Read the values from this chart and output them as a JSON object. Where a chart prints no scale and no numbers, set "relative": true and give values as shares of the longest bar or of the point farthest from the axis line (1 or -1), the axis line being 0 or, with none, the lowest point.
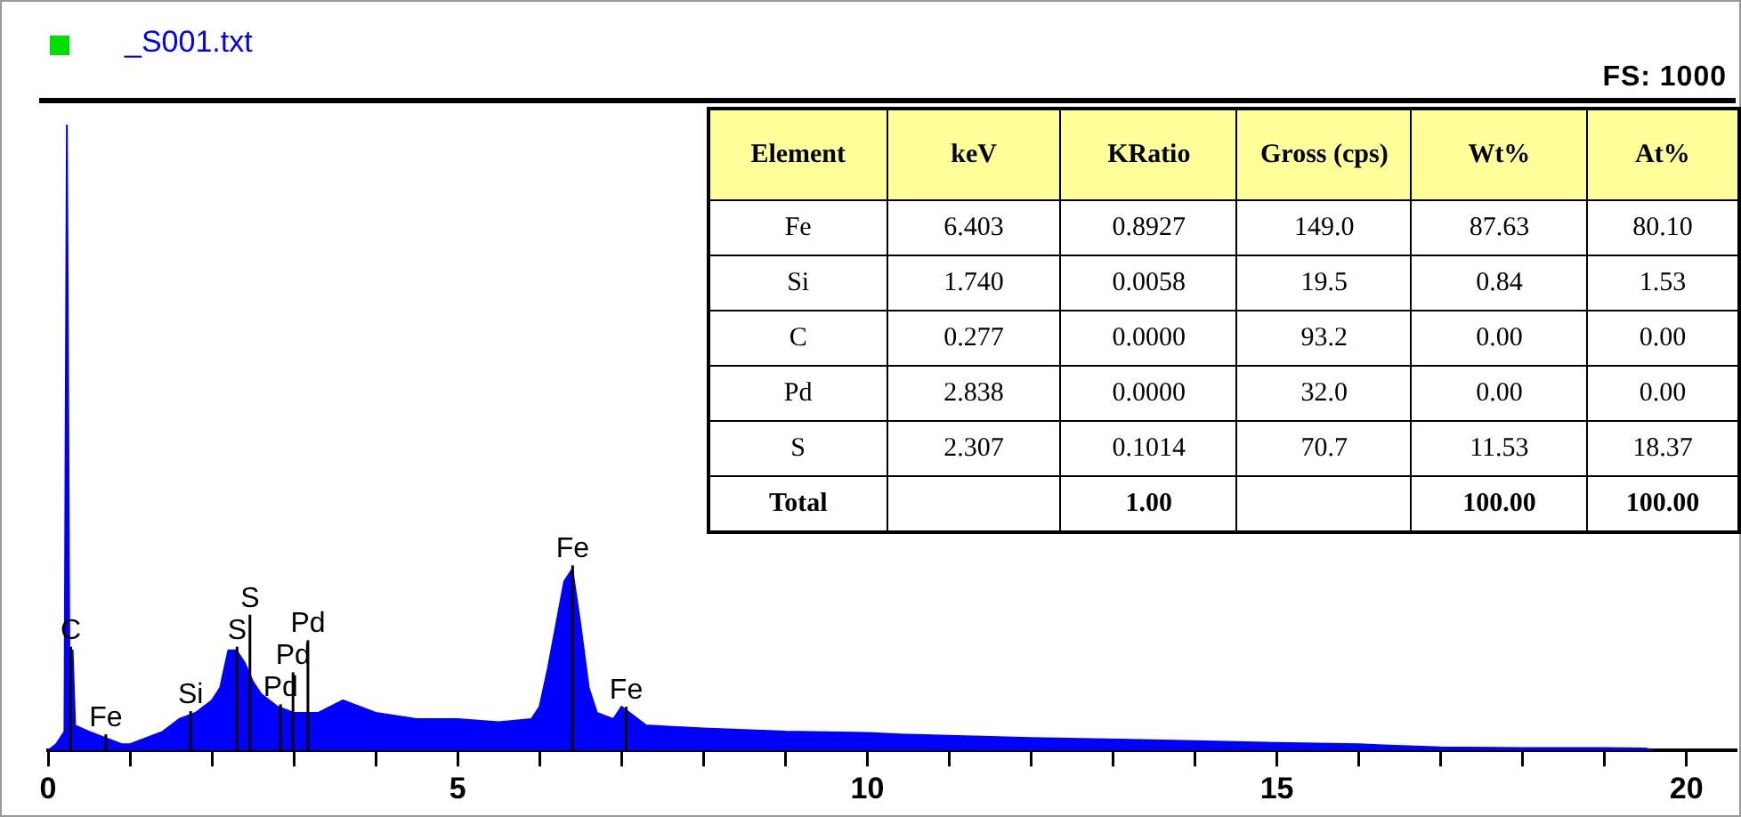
{
  "chart_data": {
    "type": "area",
    "title": "_S001.txt",
    "relative": true,
    "legend": false,
    "grid": false,
    "marker": "none",
    "xlim": [
      0,
      20.6
    ],
    "xticks": [
      0,
      {
        "value": 1,
        "label": null
      },
      {
        "value": 2,
        "label": null
      },
      {
        "value": 3,
        "label": null
      },
      {
        "value": 4,
        "label": null
      },
      5,
      {
        "value": 6,
        "label": null
      },
      {
        "value": 7,
        "label": null
      },
      {
        "value": 8,
        "label": null
      },
      {
        "value": 9,
        "label": null
      },
      10,
      {
        "value": 11,
        "label": null
      },
      {
        "value": 12,
        "label": null
      },
      {
        "value": 13,
        "label": null
      },
      {
        "value": 14,
        "label": null
      },
      15,
      {
        "value": 16,
        "label": null
      },
      {
        "value": 17,
        "label": null
      },
      {
        "value": 18,
        "label": null
      },
      {
        "value": 19,
        "label": null
      },
      20
    ],
    "x": [
      0,
      0.1,
      0.2,
      0.23,
      0.26,
      0.3,
      0.33,
      0.5,
      0.7,
      0.9,
      1.0,
      1.2,
      1.4,
      1.6,
      1.8,
      2.0,
      2.1,
      2.2,
      2.3,
      2.4,
      2.5,
      2.6,
      2.8,
      3.0,
      3.3,
      3.6,
      3.8,
      4.0,
      4.5,
      5.0,
      5.5,
      5.9,
      6.0,
      6.1,
      6.2,
      6.3,
      6.4,
      6.5,
      6.6,
      6.7,
      6.9,
      7.0,
      7.1,
      7.3,
      8,
      9,
      10,
      10.5,
      12,
      14,
      15,
      16,
      16.3,
      17,
      18,
      19,
      19.5,
      19.6
    ],
    "series": [
      {
        "color": "#0000ff",
        "values": [
          0,
          0.01,
          0.03,
          1,
          0.16,
          0.16,
          0.04,
          0.03,
          0.02,
          0.01,
          0.01,
          0.02,
          0.03,
          0.05,
          0.06,
          0.08,
          0.1,
          0.16,
          0.16,
          0.14,
          0.11,
          0.09,
          0.07,
          0.06,
          0.06,
          0.08,
          0.07,
          0.06,
          0.05,
          0.05,
          0.045,
          0.05,
          0.07,
          0.13,
          0.2,
          0.27,
          0.29,
          0.2,
          0.1,
          0.06,
          0.05,
          0.07,
          0.06,
          0.04,
          0.035,
          0.03,
          0.028,
          0.025,
          0.02,
          0.015,
          0.012,
          0.01,
          0.008,
          0.005,
          0.004,
          0.004,
          0.003,
          0
        ]
      }
    ],
    "annotations": [
      "FS: 1000",
      "Element",
      "keV",
      "KRatio",
      "Gross (cps)",
      "Wt%",
      "At%",
      "Fe",
      "6.403",
      "0.8927",
      "149.0",
      "87.63",
      "80.10",
      "Si",
      "1.740",
      "0.0058",
      "19.5",
      "0.84",
      "1.53",
      "C",
      "0.277",
      "0.0000",
      "93.2",
      "0.00",
      "0.00",
      "Pd",
      "2.838",
      "0.0000",
      "32.0",
      "0.00",
      "0.00",
      "S",
      "2.307",
      "0.1014",
      "70.7",
      "11.53",
      "18.37",
      "Total",
      "1.00",
      "100.00",
      "100.00",
      {
        "text": "C",
        "x": 0.277,
        "y": 0.16
      },
      {
        "text": "Fe",
        "x": 0.705,
        "y": 0.02
      },
      {
        "text": "Si",
        "x": 1.74,
        "y": 0.057
      },
      {
        "text": "S",
        "x": 2.307,
        "y": 0.16
      },
      {
        "text": "S",
        "x": 2.464,
        "y": 0.121
      },
      {
        "text": "Pd",
        "x": 2.838,
        "y": 0.068
      },
      {
        "text": "Pd",
        "x": 2.99,
        "y": 0.06
      },
      {
        "text": "Pd",
        "x": 3.172,
        "y": 0.06
      },
      {
        "text": "Fe",
        "x": 6.403,
        "y": 0.29
      },
      {
        "text": "Fe",
        "x": 7.057,
        "y": 0.064
      }
    ]
  }
}
